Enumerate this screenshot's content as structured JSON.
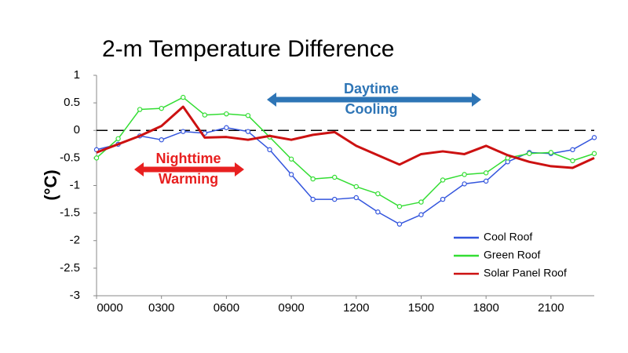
{
  "chart_data": {
    "type": "line",
    "title": "2-m Temperature Difference",
    "y_label": "(°C)",
    "x": [
      0,
      1,
      2,
      3,
      4,
      5,
      6,
      7,
      8,
      9,
      10,
      11,
      12,
      13,
      14,
      15,
      16,
      17,
      18,
      19,
      20,
      21,
      22,
      23
    ],
    "xlim": [
      0,
      23
    ],
    "xticks": [
      {
        "value": 0,
        "label": "0000"
      },
      {
        "value": 3,
        "label": "0300"
      },
      {
        "value": 6,
        "label": "0600"
      },
      {
        "value": 9,
        "label": "0900"
      },
      {
        "value": 12,
        "label": "1200"
      },
      {
        "value": 15,
        "label": "1500"
      },
      {
        "value": 18,
        "label": "1800"
      },
      {
        "value": 21,
        "label": "2100"
      }
    ],
    "ylim": [
      -3,
      1
    ],
    "yticks": [
      -3,
      -2.5,
      -2,
      -1.5,
      -1,
      -0.5,
      0,
      0.5,
      1
    ],
    "hline": 0,
    "legend": "lower right",
    "series": [
      {
        "name": "Cool Roof",
        "color": "#3355dd",
        "markers": true,
        "values": [
          -0.35,
          -0.25,
          -0.1,
          -0.17,
          -0.02,
          -0.05,
          0.05,
          -0.02,
          -0.35,
          -0.8,
          -1.25,
          -1.25,
          -1.22,
          -1.48,
          -1.7,
          -1.53,
          -1.25,
          -0.97,
          -0.92,
          -0.57,
          -0.4,
          -0.42,
          -0.35,
          -0.13
        ]
      },
      {
        "name": "Green Roof",
        "color": "#33dd33",
        "markers": true,
        "values": [
          -0.5,
          -0.15,
          0.38,
          0.4,
          0.6,
          0.28,
          0.3,
          0.27,
          -0.12,
          -0.52,
          -0.88,
          -0.85,
          -1.02,
          -1.15,
          -1.38,
          -1.3,
          -0.9,
          -0.8,
          -0.77,
          -0.5,
          -0.42,
          -0.4,
          -0.55,
          -0.42
        ]
      },
      {
        "name": "Solar Panel Roof",
        "color": "#cc1111",
        "markers": false,
        "values": [
          -0.4,
          -0.25,
          -0.1,
          0.08,
          0.43,
          -0.13,
          -0.12,
          -0.17,
          -0.1,
          -0.17,
          -0.08,
          -0.03,
          -0.28,
          -0.45,
          -0.62,
          -0.43,
          -0.38,
          -0.43,
          -0.28,
          -0.45,
          -0.57,
          -0.65,
          -0.68,
          -0.5
        ]
      }
    ],
    "annotations": [
      {
        "lines": [
          "Daytime",
          "Cooling"
        ],
        "color": "#2e75b6"
      },
      {
        "lines": [
          "Nighttime",
          "Warming"
        ],
        "color": "#e82020"
      }
    ]
  }
}
